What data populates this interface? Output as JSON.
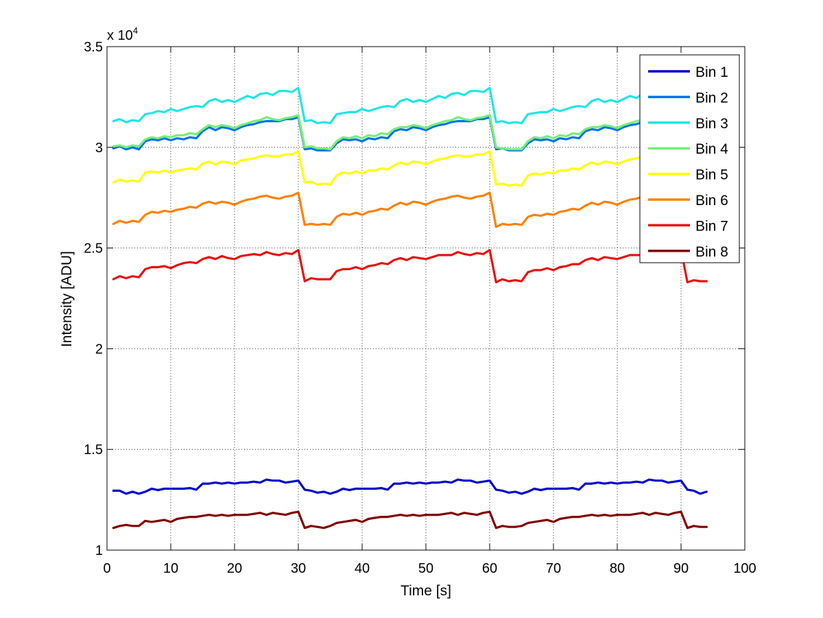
{
  "chart_data": {
    "type": "line",
    "title": "",
    "xlabel": "Time [s]",
    "ylabel": "Intensity [ADU]",
    "y_multiplier_label": "x 10",
    "y_multiplier_exponent": "4",
    "xlim": [
      0,
      100
    ],
    "ylim": [
      1,
      3.5
    ],
    "xticks": [
      0,
      10,
      20,
      30,
      40,
      50,
      60,
      70,
      80,
      90,
      100
    ],
    "yticks": [
      1,
      1.5,
      2,
      2.5,
      3,
      3.5
    ],
    "xtick_labels": [
      "0",
      "10",
      "20",
      "30",
      "40",
      "50",
      "60",
      "70",
      "80",
      "90",
      "100"
    ],
    "ytick_labels": [
      "1",
      "1.5",
      "2",
      "2.5",
      "3",
      "3.5"
    ],
    "grid": true,
    "legend_position": "top-right",
    "series": [
      {
        "name": "Bin 1",
        "color": "#0000cc",
        "x_start": 1,
        "x_step": 1,
        "values": [
          1.295,
          1.295,
          1.28,
          1.29,
          1.28,
          1.29,
          1.305,
          1.298,
          1.305,
          1.305,
          1.305,
          1.305,
          1.308,
          1.3,
          1.33,
          1.33,
          1.335,
          1.33,
          1.335,
          1.33,
          1.335,
          1.335,
          1.34,
          1.335,
          1.35,
          1.345,
          1.345,
          1.335,
          1.34,
          1.345,
          1.3,
          1.295,
          1.285,
          1.29,
          1.28,
          1.29,
          1.305,
          1.298,
          1.305,
          1.305,
          1.305,
          1.305,
          1.308,
          1.3,
          1.33,
          1.33,
          1.335,
          1.33,
          1.335,
          1.33,
          1.335,
          1.335,
          1.34,
          1.335,
          1.35,
          1.345,
          1.345,
          1.335,
          1.34,
          1.345,
          1.3,
          1.295,
          1.285,
          1.29,
          1.28,
          1.29,
          1.305,
          1.298,
          1.305,
          1.305,
          1.305,
          1.305,
          1.308,
          1.3,
          1.33,
          1.33,
          1.335,
          1.33,
          1.335,
          1.33,
          1.335,
          1.335,
          1.34,
          1.335,
          1.35,
          1.345,
          1.345,
          1.335,
          1.34,
          1.345,
          1.3,
          1.295,
          1.28,
          1.29
        ]
      },
      {
        "name": "Bin 2",
        "color": "#0072e8",
        "x_start": 1,
        "x_step": 1,
        "values": [
          2.995,
          3.005,
          2.99,
          3.0,
          2.99,
          3.03,
          3.04,
          3.035,
          3.045,
          3.035,
          3.045,
          3.04,
          3.05,
          3.045,
          3.08,
          3.1,
          3.085,
          3.1,
          3.095,
          3.085,
          3.1,
          3.11,
          3.115,
          3.125,
          3.13,
          3.13,
          3.13,
          3.14,
          3.14,
          3.15,
          2.99,
          2.995,
          2.985,
          2.985,
          2.985,
          3.02,
          3.04,
          3.035,
          3.04,
          3.03,
          3.045,
          3.04,
          3.05,
          3.045,
          3.08,
          3.09,
          3.085,
          3.1,
          3.095,
          3.085,
          3.1,
          3.11,
          3.115,
          3.125,
          3.13,
          3.13,
          3.13,
          3.14,
          3.14,
          3.15,
          2.99,
          2.995,
          2.985,
          2.985,
          2.985,
          3.02,
          3.04,
          3.035,
          3.04,
          3.03,
          3.045,
          3.04,
          3.05,
          3.045,
          3.08,
          3.09,
          3.085,
          3.1,
          3.095,
          3.085,
          3.1,
          3.11,
          3.115,
          3.125,
          3.13,
          3.13,
          3.13,
          3.14,
          3.14,
          3.15,
          2.99,
          2.995,
          2.985,
          2.985
        ]
      },
      {
        "name": "Bin 3",
        "color": "#1fe6e6",
        "x_start": 1,
        "x_step": 1,
        "values": [
          3.13,
          3.14,
          3.125,
          3.135,
          3.13,
          3.165,
          3.17,
          3.18,
          3.175,
          3.19,
          3.18,
          3.19,
          3.2,
          3.205,
          3.2,
          3.23,
          3.24,
          3.225,
          3.235,
          3.225,
          3.24,
          3.255,
          3.245,
          3.265,
          3.27,
          3.26,
          3.28,
          3.28,
          3.275,
          3.295,
          3.13,
          3.135,
          3.12,
          3.125,
          3.12,
          3.165,
          3.17,
          3.175,
          3.175,
          3.19,
          3.18,
          3.19,
          3.2,
          3.205,
          3.2,
          3.23,
          3.24,
          3.225,
          3.235,
          3.225,
          3.24,
          3.255,
          3.245,
          3.265,
          3.27,
          3.26,
          3.28,
          3.28,
          3.275,
          3.295,
          3.125,
          3.13,
          3.12,
          3.125,
          3.12,
          3.165,
          3.17,
          3.175,
          3.175,
          3.19,
          3.18,
          3.19,
          3.2,
          3.205,
          3.2,
          3.23,
          3.24,
          3.225,
          3.235,
          3.225,
          3.24,
          3.255,
          3.245,
          3.265,
          3.27,
          3.26,
          3.28,
          3.28,
          3.275,
          3.295,
          3.125,
          3.13,
          3.12,
          3.125
        ]
      },
      {
        "name": "Bin 4",
        "color": "#77ee77",
        "x_start": 1,
        "x_step": 1,
        "values": [
          3.005,
          3.01,
          3.0,
          3.01,
          3.005,
          3.04,
          3.05,
          3.045,
          3.055,
          3.05,
          3.06,
          3.06,
          3.07,
          3.065,
          3.09,
          3.11,
          3.1,
          3.11,
          3.105,
          3.095,
          3.11,
          3.12,
          3.13,
          3.135,
          3.15,
          3.14,
          3.135,
          3.145,
          3.15,
          3.16,
          3.0,
          3.005,
          2.995,
          2.995,
          2.99,
          3.03,
          3.05,
          3.045,
          3.055,
          3.045,
          3.06,
          3.055,
          3.07,
          3.065,
          3.09,
          3.1,
          3.1,
          3.11,
          3.105,
          3.095,
          3.11,
          3.12,
          3.13,
          3.135,
          3.15,
          3.14,
          3.135,
          3.145,
          3.15,
          3.16,
          3.0,
          2.995,
          2.99,
          2.99,
          2.99,
          3.03,
          3.05,
          3.045,
          3.055,
          3.045,
          3.06,
          3.055,
          3.07,
          3.065,
          3.09,
          3.1,
          3.1,
          3.11,
          3.105,
          3.095,
          3.11,
          3.12,
          3.13,
          3.135,
          3.15,
          3.14,
          3.135,
          3.145,
          3.15,
          3.16,
          2.995,
          2.995,
          2.99,
          2.99
        ]
      },
      {
        "name": "Bin 5",
        "color": "#ffff00",
        "x_start": 1,
        "x_step": 1,
        "values": [
          2.825,
          2.84,
          2.83,
          2.835,
          2.83,
          2.875,
          2.88,
          2.875,
          2.885,
          2.875,
          2.885,
          2.89,
          2.895,
          2.89,
          2.92,
          2.93,
          2.915,
          2.93,
          2.925,
          2.915,
          2.935,
          2.94,
          2.945,
          2.955,
          2.96,
          2.955,
          2.955,
          2.965,
          2.965,
          2.98,
          2.825,
          2.83,
          2.815,
          2.82,
          2.815,
          2.86,
          2.875,
          2.87,
          2.88,
          2.87,
          2.885,
          2.885,
          2.895,
          2.89,
          2.91,
          2.925,
          2.915,
          2.93,
          2.925,
          2.915,
          2.93,
          2.94,
          2.945,
          2.955,
          2.96,
          2.955,
          2.955,
          2.965,
          2.965,
          2.98,
          2.815,
          2.82,
          2.81,
          2.815,
          2.81,
          2.86,
          2.87,
          2.865,
          2.875,
          2.87,
          2.885,
          2.885,
          2.895,
          2.89,
          2.91,
          2.925,
          2.915,
          2.93,
          2.925,
          2.915,
          2.93,
          2.94,
          2.945,
          2.955,
          2.96,
          2.955,
          2.955,
          2.965,
          2.965,
          2.98,
          2.82,
          2.82,
          2.81,
          2.815
        ]
      },
      {
        "name": "Bin 6",
        "color": "#ff8000",
        "x_start": 1,
        "x_step": 1,
        "values": [
          2.62,
          2.635,
          2.625,
          2.635,
          2.63,
          2.665,
          2.68,
          2.675,
          2.685,
          2.68,
          2.69,
          2.695,
          2.705,
          2.7,
          2.72,
          2.73,
          2.72,
          2.73,
          2.725,
          2.715,
          2.73,
          2.74,
          2.745,
          2.755,
          2.76,
          2.75,
          2.745,
          2.755,
          2.76,
          2.775,
          2.615,
          2.62,
          2.615,
          2.62,
          2.615,
          2.655,
          2.67,
          2.665,
          2.675,
          2.665,
          2.68,
          2.685,
          2.695,
          2.69,
          2.71,
          2.725,
          2.715,
          2.73,
          2.725,
          2.715,
          2.73,
          2.74,
          2.745,
          2.755,
          2.76,
          2.75,
          2.745,
          2.755,
          2.76,
          2.775,
          2.605,
          2.62,
          2.615,
          2.62,
          2.615,
          2.655,
          2.665,
          2.66,
          2.67,
          2.665,
          2.68,
          2.685,
          2.695,
          2.69,
          2.71,
          2.725,
          2.715,
          2.73,
          2.725,
          2.715,
          2.73,
          2.74,
          2.745,
          2.755,
          2.76,
          2.75,
          2.745,
          2.755,
          2.76,
          2.775,
          2.6,
          2.61,
          2.6,
          2.6
        ]
      },
      {
        "name": "Bin 7",
        "color": "#e81010",
        "x_start": 1,
        "x_step": 1,
        "values": [
          2.345,
          2.36,
          2.35,
          2.36,
          2.355,
          2.395,
          2.405,
          2.405,
          2.41,
          2.4,
          2.415,
          2.425,
          2.43,
          2.425,
          2.445,
          2.455,
          2.445,
          2.46,
          2.45,
          2.445,
          2.46,
          2.465,
          2.47,
          2.465,
          2.48,
          2.47,
          2.465,
          2.475,
          2.47,
          2.49,
          2.335,
          2.35,
          2.345,
          2.345,
          2.345,
          2.385,
          2.395,
          2.395,
          2.405,
          2.395,
          2.41,
          2.415,
          2.425,
          2.42,
          2.44,
          2.45,
          2.44,
          2.455,
          2.45,
          2.445,
          2.455,
          2.465,
          2.465,
          2.465,
          2.48,
          2.47,
          2.465,
          2.475,
          2.47,
          2.49,
          2.33,
          2.345,
          2.335,
          2.34,
          2.335,
          2.38,
          2.39,
          2.39,
          2.4,
          2.39,
          2.405,
          2.41,
          2.42,
          2.42,
          2.44,
          2.45,
          2.44,
          2.455,
          2.45,
          2.445,
          2.455,
          2.465,
          2.465,
          2.465,
          2.48,
          2.47,
          2.465,
          2.475,
          2.47,
          2.49,
          2.33,
          2.34,
          2.335,
          2.335
        ]
      },
      {
        "name": "Bin 8",
        "color": "#800000",
        "x_start": 1,
        "x_step": 1,
        "values": [
          1.11,
          1.12,
          1.125,
          1.12,
          1.12,
          1.145,
          1.14,
          1.145,
          1.15,
          1.14,
          1.155,
          1.16,
          1.165,
          1.165,
          1.17,
          1.175,
          1.17,
          1.175,
          1.17,
          1.175,
          1.175,
          1.175,
          1.18,
          1.185,
          1.175,
          1.185,
          1.18,
          1.175,
          1.185,
          1.19,
          1.11,
          1.12,
          1.115,
          1.11,
          1.12,
          1.135,
          1.14,
          1.145,
          1.15,
          1.14,
          1.155,
          1.16,
          1.165,
          1.165,
          1.17,
          1.175,
          1.17,
          1.175,
          1.17,
          1.175,
          1.175,
          1.175,
          1.18,
          1.185,
          1.175,
          1.185,
          1.18,
          1.175,
          1.185,
          1.19,
          1.11,
          1.12,
          1.115,
          1.115,
          1.12,
          1.135,
          1.14,
          1.145,
          1.15,
          1.14,
          1.155,
          1.16,
          1.165,
          1.165,
          1.17,
          1.175,
          1.17,
          1.175,
          1.17,
          1.175,
          1.175,
          1.175,
          1.18,
          1.185,
          1.175,
          1.185,
          1.18,
          1.175,
          1.185,
          1.19,
          1.11,
          1.12,
          1.115,
          1.115
        ]
      }
    ]
  }
}
